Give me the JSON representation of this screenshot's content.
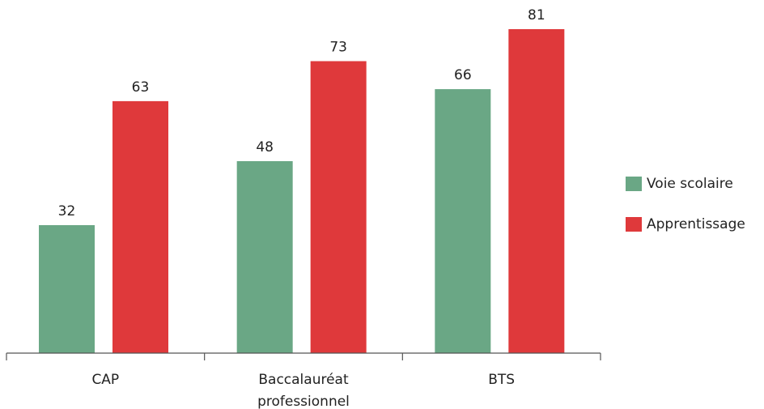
{
  "chart_data": {
    "type": "bar",
    "categories": [
      [
        "CAP"
      ],
      [
        "Baccalauréat",
        "professionnel"
      ],
      [
        "BTS"
      ]
    ],
    "series": [
      {
        "name": "Voie scolaire",
        "color": "#6aa785",
        "values": [
          32,
          48,
          66
        ]
      },
      {
        "name": "Apprentissage",
        "color": "#df393b",
        "values": [
          63,
          73,
          81
        ]
      }
    ],
    "ylim": [
      0,
      90
    ],
    "grid": false,
    "legend_position": "right"
  }
}
